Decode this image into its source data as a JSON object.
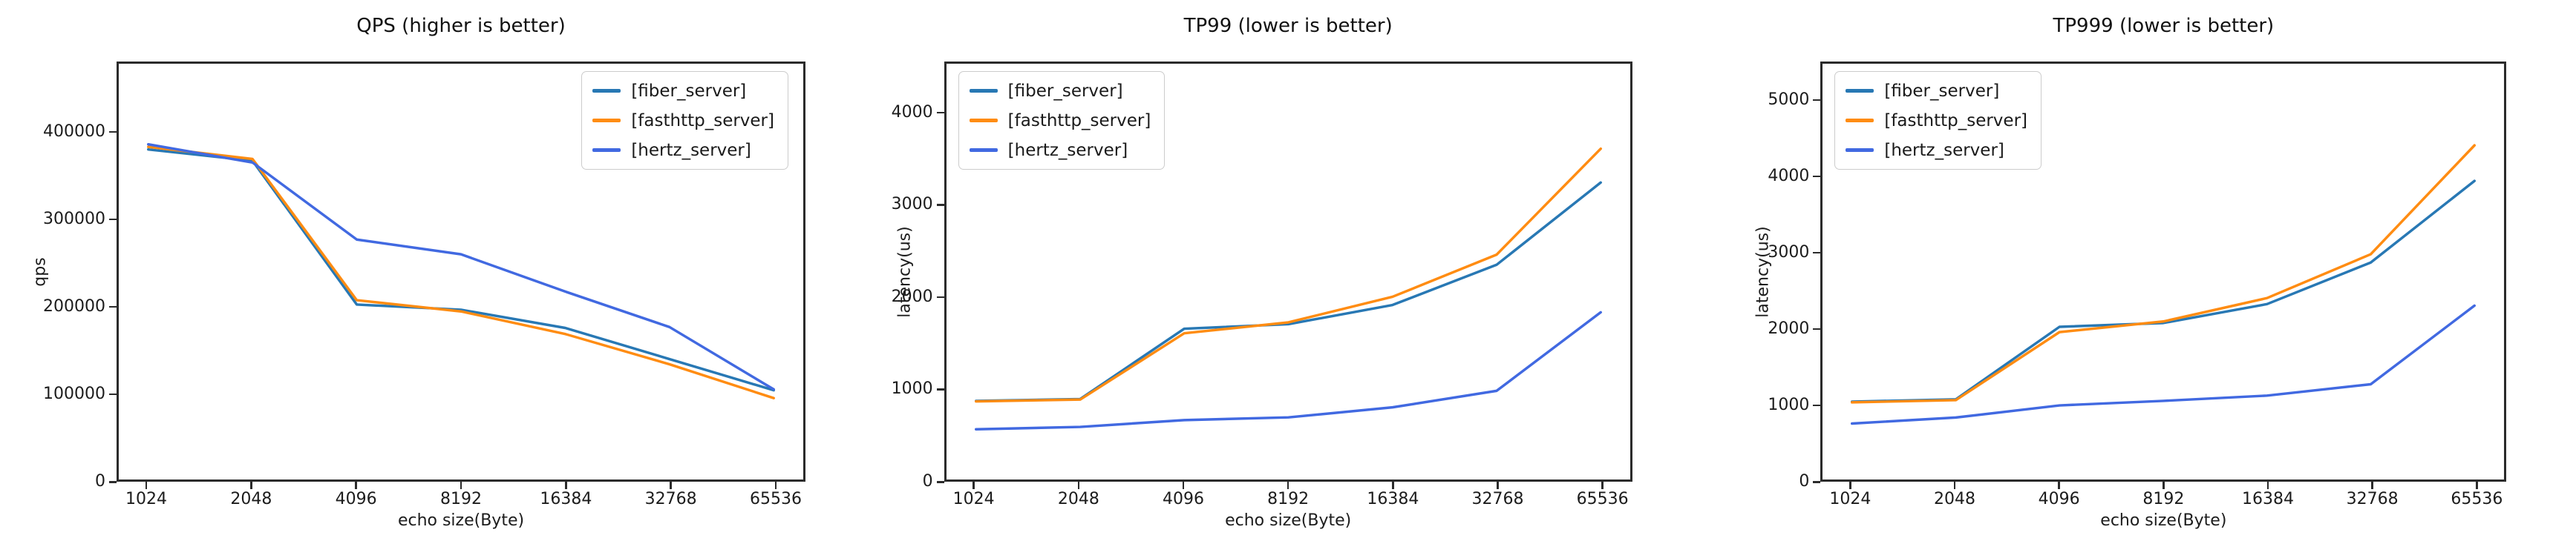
{
  "figure": {
    "background": "#ffffff"
  },
  "chart_data": [
    {
      "type": "line",
      "title": "QPS (higher is better)",
      "xlabel": "echo size(Byte)",
      "ylabel": "qps",
      "x_labels": [
        "1024",
        "2048",
        "4096",
        "8192",
        "16384",
        "32768",
        "65536"
      ],
      "ytick_labels": [
        "0",
        "100000",
        "200000",
        "300000",
        "400000"
      ],
      "ytick_values": [
        0,
        100000,
        200000,
        300000,
        400000
      ],
      "ylim": [
        0,
        480000
      ],
      "grid": false,
      "legend_position": "upper right",
      "series": [
        {
          "name": "[fiber_server]",
          "color": "#2878b4",
          "values": [
            381000,
            368000,
            202000,
            196000,
            175000,
            139000,
            103000
          ]
        },
        {
          "name": "[fasthttp_server]",
          "color": "#ff8c12",
          "values": [
            384000,
            370000,
            207000,
            194000,
            168000,
            133000,
            94000
          ]
        },
        {
          "name": "[hertz_server]",
          "color": "#4169e1",
          "values": [
            387000,
            366000,
            277000,
            260000,
            217000,
            176000,
            104000
          ]
        }
      ]
    },
    {
      "type": "line",
      "title": "TP99 (lower is better)",
      "xlabel": "echo size(Byte)",
      "ylabel": "latency(us)",
      "x_labels": [
        "1024",
        "2048",
        "4096",
        "8192",
        "16384",
        "32768",
        "65536"
      ],
      "ytick_labels": [
        "0",
        "1000",
        "2000",
        "3000",
        "4000"
      ],
      "ytick_values": [
        0,
        1000,
        2000,
        3000,
        4000
      ],
      "ylim": [
        0,
        4550
      ],
      "grid": false,
      "legend_position": "upper left",
      "series": [
        {
          "name": "[fiber_server]",
          "color": "#2878b4",
          "values": [
            860,
            880,
            1650,
            1700,
            1910,
            2350,
            3250
          ]
        },
        {
          "name": "[fasthttp_server]",
          "color": "#ff8c12",
          "values": [
            855,
            875,
            1600,
            1720,
            2000,
            2460,
            3620
          ]
        },
        {
          "name": "[hertz_server]",
          "color": "#4169e1",
          "values": [
            550,
            575,
            650,
            680,
            790,
            970,
            1830
          ]
        }
      ]
    },
    {
      "type": "line",
      "title": "TP999 (lower is better)",
      "xlabel": "echo size(Byte)",
      "ylabel": "latency(us)",
      "x_labels": [
        "1024",
        "2048",
        "4096",
        "8192",
        "16384",
        "32768",
        "65536"
      ],
      "ytick_labels": [
        "0",
        "1000",
        "2000",
        "3000",
        "4000",
        "5000"
      ],
      "ytick_values": [
        0,
        1000,
        2000,
        3000,
        4000,
        5000
      ],
      "ylim": [
        0,
        5500
      ],
      "grid": false,
      "legend_position": "upper left",
      "series": [
        {
          "name": "[fiber_server]",
          "color": "#2878b4",
          "values": [
            1030,
            1060,
            2020,
            2070,
            2320,
            2870,
            3950
          ]
        },
        {
          "name": "[fasthttp_server]",
          "color": "#ff8c12",
          "values": [
            1020,
            1050,
            1950,
            2090,
            2400,
            2980,
            4420
          ]
        },
        {
          "name": "[hertz_server]",
          "color": "#4169e1",
          "values": [
            740,
            820,
            980,
            1040,
            1110,
            1260,
            2300
          ]
        }
      ]
    }
  ]
}
